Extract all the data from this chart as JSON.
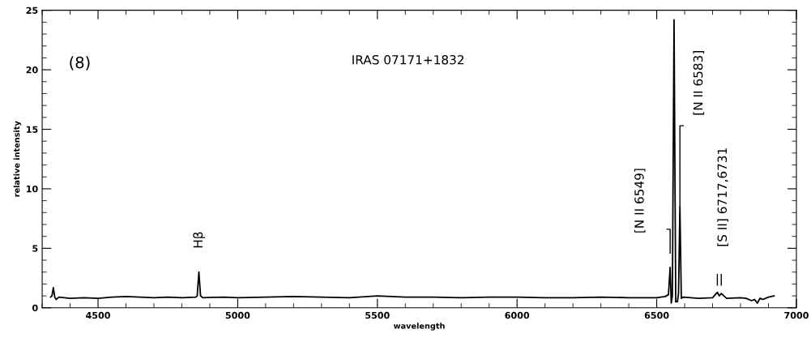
{
  "chart_data": {
    "type": "line",
    "xlabel": "wavelength",
    "ylabel": "relative intensity",
    "x": [
      4330,
      4335,
      4340,
      4345,
      4350,
      4360,
      4400,
      4450,
      4500,
      4550,
      4600,
      4650,
      4700,
      4750,
      4800,
      4850,
      4855,
      4861,
      4867,
      4875,
      4950,
      5000,
      5100,
      5200,
      5300,
      5400,
      5500,
      5600,
      5700,
      5800,
      5900,
      6000,
      6100,
      6200,
      6300,
      6400,
      6500,
      6530,
      6542,
      6548,
      6552,
      6556,
      6562,
      6568,
      6574,
      6578,
      6583,
      6588,
      6595,
      6650,
      6700,
      6717,
      6724,
      6731,
      6750,
      6800,
      6820,
      6840,
      6850,
      6860,
      6870,
      6880,
      6900,
      6920
    ],
    "series": [
      {
        "color": "#000000",
        "values": [
          0.9,
          1.0,
          1.7,
          0.9,
          0.7,
          0.9,
          0.8,
          0.85,
          0.8,
          0.9,
          0.95,
          0.9,
          0.85,
          0.9,
          0.85,
          0.9,
          1.0,
          3.0,
          1.0,
          0.85,
          0.9,
          0.85,
          0.9,
          0.95,
          0.9,
          0.85,
          1.0,
          0.9,
          0.9,
          0.85,
          0.9,
          0.9,
          0.85,
          0.85,
          0.9,
          0.85,
          0.85,
          0.95,
          1.1,
          3.4,
          0.4,
          1.0,
          24.2,
          0.5,
          0.5,
          1.2,
          8.5,
          0.8,
          0.9,
          0.8,
          0.85,
          1.3,
          1.0,
          1.2,
          0.8,
          0.85,
          0.8,
          0.6,
          0.7,
          0.4,
          0.8,
          0.7,
          0.9,
          1.0
        ]
      }
    ],
    "xlim": [
      4300,
      7000
    ],
    "xticks": [
      4500,
      5000,
      5500,
      6000,
      6500,
      7000
    ],
    "ylim": [
      0,
      25
    ],
    "yticks": [
      0,
      5,
      10,
      15,
      20,
      25
    ],
    "annotations": [
      "(8)",
      "IRAS 07171+1832",
      "Hβ",
      {
        "text": "[N II 6549]",
        "x": 6548,
        "y": 4.6
      },
      {
        "text": "[N II 6583]",
        "x": 6583,
        "y": 8.5
      },
      "[S II] 6717,6731"
    ]
  }
}
